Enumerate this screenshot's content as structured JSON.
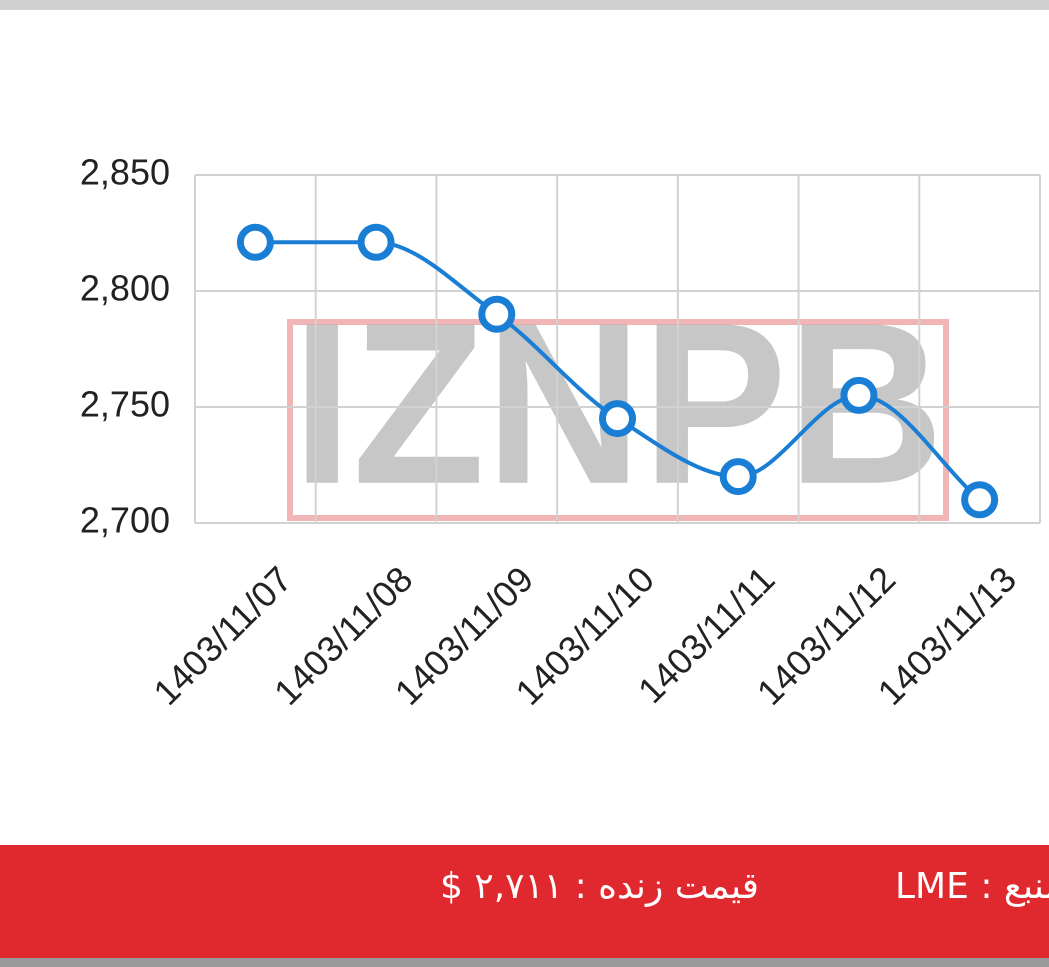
{
  "chart_data": {
    "type": "line",
    "categories": [
      "1403/11/07",
      "1403/11/08",
      "1403/11/09",
      "1403/11/10",
      "1403/11/11",
      "1403/11/12",
      "1403/11/13"
    ],
    "values": [
      2821,
      2821,
      2790,
      2745,
      2720,
      2755,
      2710
    ],
    "color": "#1a7fd4",
    "ylim": [
      2700,
      2850
    ],
    "yticks": [
      {
        "value": 2700,
        "label": "2,700"
      },
      {
        "value": 2750,
        "label": "2,750"
      },
      {
        "value": 2800,
        "label": "2,800"
      },
      {
        "value": 2850,
        "label": "2,850"
      }
    ],
    "grid": true,
    "watermark": "IZNPB"
  },
  "footer": {
    "live_price": "قیمت زنده : ۲,۷۱۱ $",
    "source": "منبع : LME"
  }
}
